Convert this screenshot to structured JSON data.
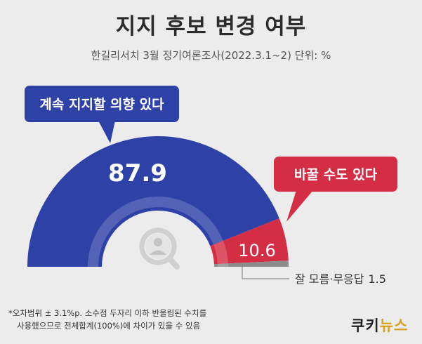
{
  "header": {
    "title": "지지 후보 변경 여부",
    "subtitle": "한길리서치 3월 정기여론조사(2022.3.1~2) 단위: %"
  },
  "chart_data": {
    "type": "pie",
    "shape": "semicircle",
    "slices": [
      {
        "label": "계속 지지할 의향 있다",
        "value": 87.9,
        "value_label": "87.9",
        "color": "#2e41a6"
      },
      {
        "label": "바꿀 수도 있다",
        "value": 10.6,
        "value_label": "10.6",
        "color": "#d42e45"
      },
      {
        "label": "잘 모름·무응답",
        "value": 1.5,
        "value_label": "1.5",
        "color": "#8c8c8c"
      }
    ],
    "total": 100
  },
  "footnote": {
    "line1": "*오차범위 ± 3.1%p. 소수점 두자리 이하 반올림된 수치를",
    "line2": "사용했으므로 전체합계(100%)에 차이가 있을 수 있음"
  },
  "brand": {
    "part1": "쿠키",
    "part2": "뉴스"
  },
  "icons": {
    "center": "magnifier-person-icon"
  }
}
